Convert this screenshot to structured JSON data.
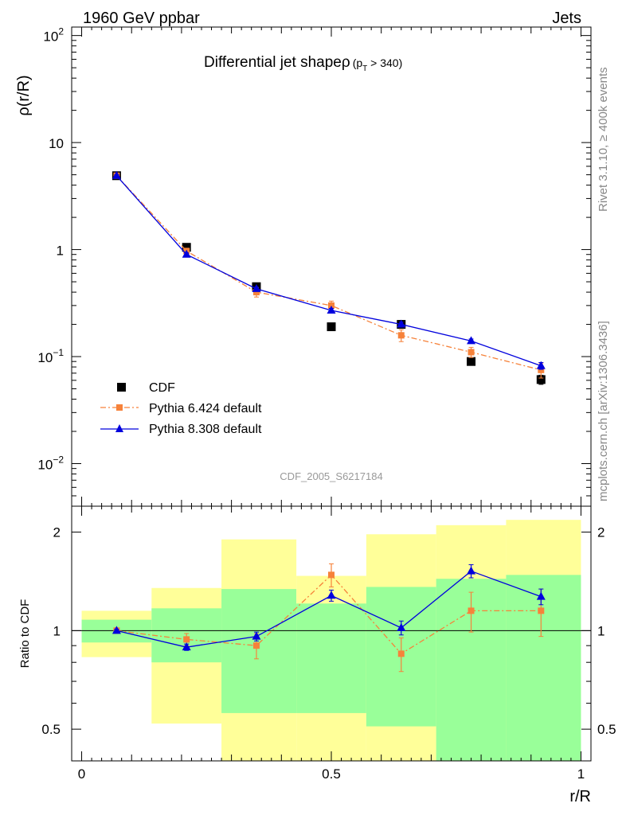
{
  "header": {
    "left_label": "1960 GeV ppbar",
    "right_label": "Jets"
  },
  "side_text": {
    "version": "Rivet 3.1.10, ≥ 400k events",
    "site": "mcplots.cern.ch [arXiv:1306.3436]"
  },
  "analysis_id": "CDF_2005_S6217184",
  "colors": {
    "data": "#000000",
    "pythia6": "#f6823a",
    "pythia8": "#0000dd",
    "band_inner": "#99ff99",
    "band_outer": "#ffff99"
  },
  "chart_data": [
    {
      "type": "line",
      "panel": "main",
      "title_main": "Differential jet shapeρ",
      "title_sub_open": "(p",
      "title_sub_index": "T",
      "title_sub_close": " > 340)",
      "ylabel": "ρ(r/R)",
      "yscale": "log",
      "ylim": [
        0.004,
        120
      ],
      "xlim": [
        -0.02,
        1.02
      ],
      "ytick_labels": [
        {
          "value": 0.01,
          "base": "10",
          "exp": "−2"
        },
        {
          "value": 0.1,
          "base": "10",
          "exp": "−1"
        },
        {
          "value": 1,
          "base": "1",
          "exp": ""
        },
        {
          "value": 10,
          "base": "10",
          "exp": ""
        },
        {
          "value": 100,
          "base": "10",
          "exp": "2"
        }
      ],
      "x": [
        0.07,
        0.21,
        0.35,
        0.5,
        0.64,
        0.78,
        0.92
      ],
      "series": [
        {
          "name": "CDF",
          "marker": "square",
          "values": [
            4.9,
            1.05,
            0.45,
            0.19,
            0.2,
            0.09,
            0.061
          ],
          "errors": [
            0.15,
            0.04,
            0.02,
            0.01,
            0.012,
            0.007,
            0.006
          ]
        },
        {
          "name": "Pythia 6.424 default",
          "marker": "square-small",
          "line": "dashdot",
          "values": [
            4.9,
            0.97,
            0.4,
            0.3,
            0.158,
            0.11,
            0.075
          ],
          "errors": [
            0.15,
            0.05,
            0.04,
            0.03,
            0.02,
            0.012,
            0.012
          ]
        },
        {
          "name": "Pythia 8.308 default",
          "marker": "triangle",
          "line": "solid",
          "values": [
            4.9,
            0.9,
            0.43,
            0.27,
            0.2,
            0.14,
            0.082
          ],
          "errors": [
            0.12,
            0.03,
            0.015,
            0.012,
            0.01,
            0.006,
            0.006
          ]
        }
      ],
      "legend": [
        "CDF",
        "Pythia 6.424 default",
        "Pythia 8.308 default"
      ],
      "legend_position": "bottom-left"
    },
    {
      "type": "line",
      "panel": "ratio",
      "ylabel": "Ratio to CDF",
      "xlabel": "r/R",
      "yscale": "log",
      "ylim": [
        0.4,
        2.4
      ],
      "xlim": [
        -0.02,
        1.02
      ],
      "xtick_labels": [
        {
          "value": 0,
          "label": "0"
        },
        {
          "value": 0.5,
          "label": "0.5"
        },
        {
          "value": 1,
          "label": "1"
        }
      ],
      "ytick_labels": [
        {
          "value": 0.5,
          "label": "0.5"
        },
        {
          "value": 1,
          "label": "1"
        },
        {
          "value": 2,
          "label": "2"
        }
      ],
      "bin_edges": [
        0,
        0.14,
        0.28,
        0.43,
        0.57,
        0.71,
        0.85,
        1.0
      ],
      "band_inner_low": [
        0.92,
        0.8,
        0.56,
        0.56,
        0.51,
        0.38,
        0.35
      ],
      "band_inner_high": [
        1.08,
        1.17,
        1.34,
        1.21,
        1.36,
        1.44,
        1.48
      ],
      "band_outer_low": [
        0.83,
        0.52,
        0.35,
        0.35,
        0.35,
        0.35,
        0.35
      ],
      "band_outer_high": [
        1.15,
        1.35,
        1.9,
        1.47,
        1.97,
        2.1,
        2.18
      ],
      "x": [
        0.07,
        0.21,
        0.35,
        0.5,
        0.64,
        0.78,
        0.92
      ],
      "series": [
        {
          "name": "Pythia 6.424 default",
          "marker": "square-small",
          "line": "dashdot",
          "values": [
            1.0,
            0.94,
            0.9,
            1.48,
            0.85,
            1.15,
            1.15
          ],
          "errors": [
            0.02,
            0.04,
            0.08,
            0.12,
            0.1,
            0.16,
            0.19
          ]
        },
        {
          "name": "Pythia 8.308 default",
          "marker": "triangle",
          "line": "solid",
          "values": [
            1.0,
            0.89,
            0.96,
            1.28,
            1.02,
            1.52,
            1.27
          ],
          "errors": [
            0.01,
            0.02,
            0.03,
            0.05,
            0.05,
            0.07,
            0.07
          ]
        }
      ]
    }
  ]
}
